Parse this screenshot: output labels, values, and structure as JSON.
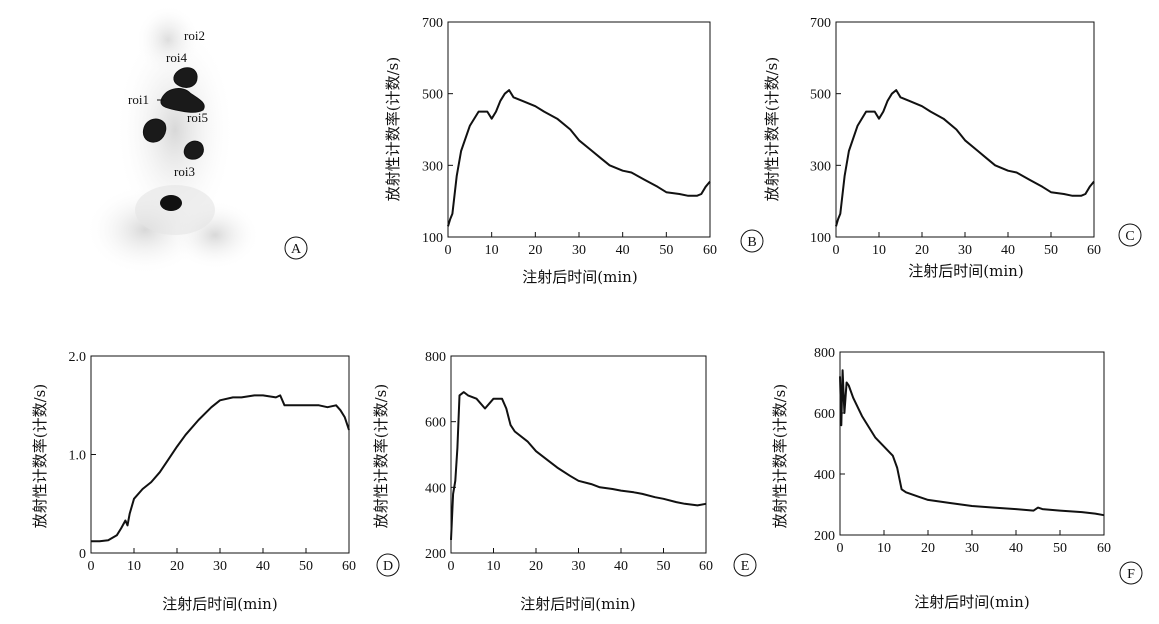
{
  "panels": [
    {
      "letter": "A",
      "rois": [
        "roi2",
        "roi4",
        "roi1",
        "roi5",
        "roi3"
      ]
    }
  ],
  "chart_data": [
    {
      "type": "line",
      "panel": "B",
      "xlabel": "注射后时间(min)",
      "ylabel": "放射性计数率(计数/s)",
      "xlim": [
        0,
        60
      ],
      "ylim": [
        100,
        700
      ],
      "xticks": [
        0,
        10,
        20,
        30,
        40,
        50,
        60
      ],
      "yticks": [
        100,
        300,
        500,
        700
      ],
      "series": [
        {
          "x": [
            0,
            0.5,
            1,
            2,
            3,
            5,
            7,
            9,
            10,
            11,
            12,
            13,
            14,
            15,
            17,
            20,
            22,
            25,
            28,
            30,
            33,
            35,
            37,
            40,
            42,
            45,
            48,
            50,
            53,
            55,
            57,
            58,
            59,
            60
          ],
          "y": [
            130,
            150,
            165,
            270,
            340,
            410,
            450,
            450,
            430,
            450,
            480,
            500,
            510,
            490,
            480,
            465,
            450,
            430,
            400,
            370,
            340,
            320,
            300,
            285,
            280,
            260,
            240,
            225,
            220,
            215,
            215,
            220,
            240,
            255
          ]
        }
      ]
    },
    {
      "type": "line",
      "panel": "C",
      "xlabel": "注射后时间(min)",
      "ylabel": "放射性计数率(计数/s)",
      "xlim": [
        0,
        60
      ],
      "ylim": [
        100,
        700
      ],
      "xticks": [
        0,
        10,
        20,
        30,
        40,
        50,
        60
      ],
      "yticks": [
        100,
        300,
        500,
        700
      ],
      "series": [
        {
          "x": [
            0,
            0.5,
            1,
            2,
            3,
            5,
            7,
            9,
            10,
            11,
            12,
            13,
            14,
            15,
            17,
            20,
            22,
            25,
            28,
            30,
            33,
            35,
            37,
            40,
            42,
            45,
            48,
            50,
            53,
            55,
            57,
            58,
            59,
            60
          ],
          "y": [
            130,
            150,
            165,
            270,
            340,
            410,
            450,
            450,
            430,
            450,
            480,
            500,
            510,
            490,
            480,
            465,
            450,
            430,
            400,
            370,
            340,
            320,
            300,
            285,
            280,
            260,
            240,
            225,
            220,
            215,
            215,
            220,
            240,
            255
          ]
        }
      ]
    },
    {
      "type": "line",
      "panel": "D",
      "xlabel": "注射后时间(min)",
      "ylabel": "放射性计数率(计数/s)",
      "xlim": [
        0,
        60
      ],
      "ylim": [
        0,
        2.0
      ],
      "xticks": [
        0,
        10,
        20,
        30,
        40,
        50,
        60
      ],
      "yticks": [
        0,
        1.0,
        2.0
      ],
      "ytick_labels": [
        "0",
        "1.0",
        "2.0"
      ],
      "series": [
        {
          "x": [
            0,
            2,
            4,
            6,
            7,
            8,
            8.5,
            9,
            10,
            12,
            14,
            16,
            18,
            20,
            22,
            25,
            28,
            30,
            33,
            35,
            38,
            40,
            43,
            44,
            45,
            47,
            50,
            53,
            55,
            57,
            58,
            59,
            60
          ],
          "y": [
            0.12,
            0.12,
            0.13,
            0.18,
            0.25,
            0.33,
            0.28,
            0.4,
            0.55,
            0.65,
            0.72,
            0.82,
            0.95,
            1.08,
            1.2,
            1.35,
            1.48,
            1.55,
            1.58,
            1.58,
            1.6,
            1.6,
            1.58,
            1.6,
            1.5,
            1.5,
            1.5,
            1.5,
            1.48,
            1.5,
            1.45,
            1.38,
            1.25
          ]
        }
      ]
    },
    {
      "type": "line",
      "panel": "E",
      "xlabel": "注射后时间(min)",
      "ylabel": "放射性计数率(计数/s)",
      "xlim": [
        0,
        60
      ],
      "ylim": [
        200,
        800
      ],
      "xticks": [
        0,
        10,
        20,
        30,
        40,
        50,
        60
      ],
      "yticks": [
        200,
        400,
        600,
        800
      ],
      "series": [
        {
          "x": [
            0,
            0.5,
            1,
            1.5,
            2,
            3,
            4,
            6,
            8,
            10,
            12,
            13,
            14,
            15,
            18,
            20,
            23,
            25,
            28,
            30,
            33,
            35,
            38,
            40,
            43,
            45,
            48,
            50,
            53,
            55,
            58,
            60
          ],
          "y": [
            240,
            380,
            420,
            520,
            680,
            690,
            680,
            670,
            640,
            670,
            670,
            640,
            590,
            570,
            540,
            510,
            480,
            460,
            435,
            420,
            410,
            400,
            395,
            390,
            385,
            380,
            370,
            365,
            355,
            350,
            345,
            350
          ]
        }
      ]
    },
    {
      "type": "line",
      "panel": "F",
      "xlabel": "注射后时间(min)",
      "ylabel": "放射性计数率(计数/s)",
      "xlim": [
        0,
        60
      ],
      "ylim": [
        200,
        800
      ],
      "xticks": [
        0,
        10,
        20,
        30,
        40,
        50,
        60
      ],
      "yticks": [
        200,
        400,
        600,
        800
      ],
      "series": [
        {
          "x": [
            0,
            0.3,
            0.6,
            1,
            1.5,
            2,
            3,
            5,
            8,
            10,
            12,
            13,
            14,
            15,
            18,
            20,
            25,
            30,
            35,
            40,
            44,
            45,
            46,
            50,
            55,
            58,
            60
          ],
          "y": [
            720,
            560,
            740,
            600,
            700,
            690,
            650,
            590,
            520,
            490,
            460,
            420,
            350,
            340,
            325,
            315,
            305,
            295,
            290,
            285,
            280,
            290,
            285,
            280,
            275,
            270,
            265
          ]
        }
      ]
    }
  ]
}
